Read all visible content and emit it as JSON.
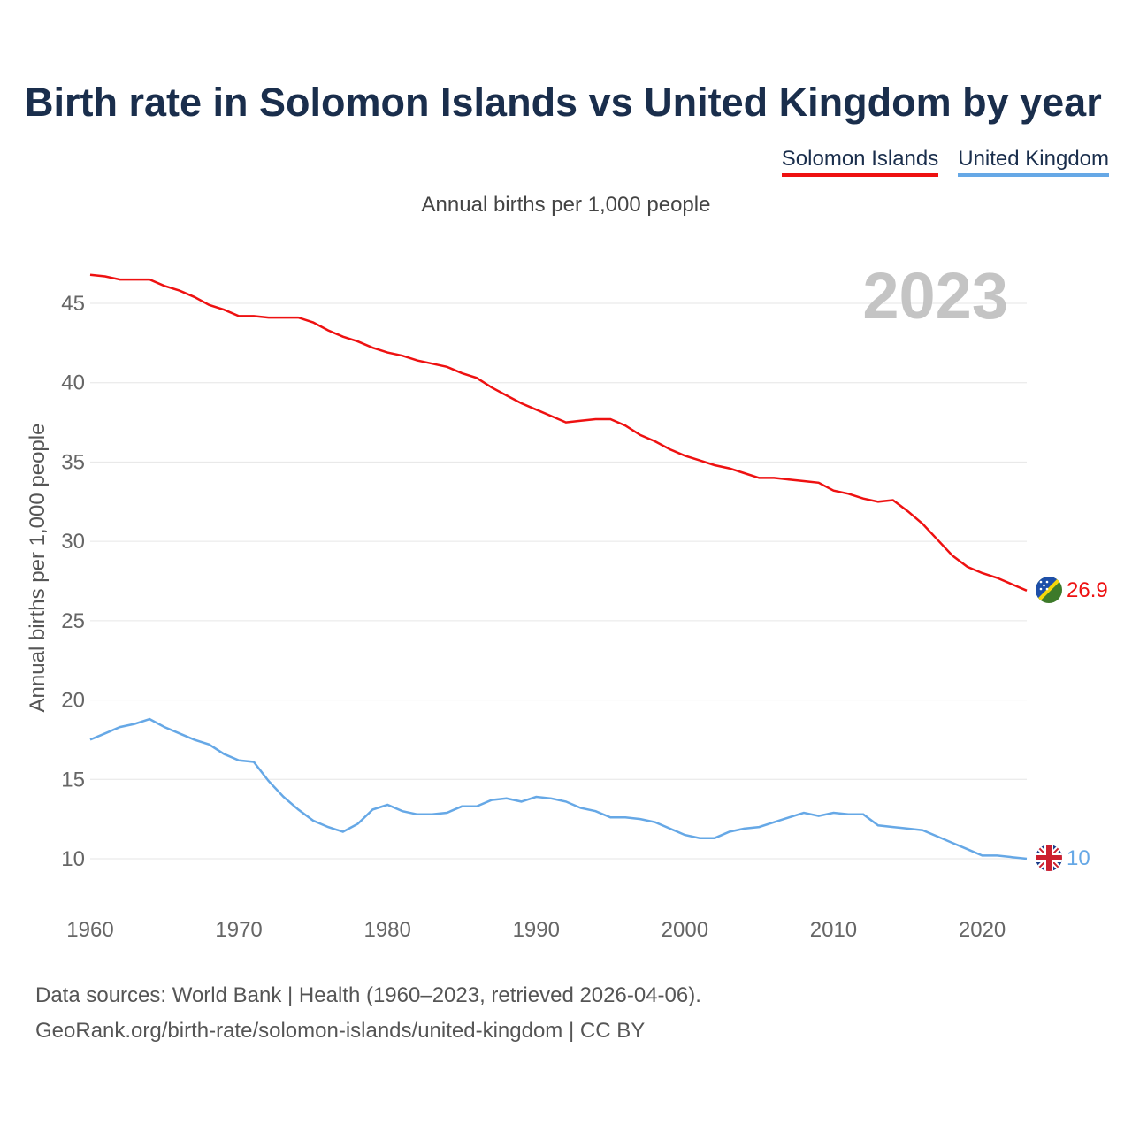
{
  "colors": {
    "solomon": "#ee1111",
    "uk": "#66a8e6",
    "title": "#1a2e4c",
    "grid": "#e6e6e6",
    "tick": "#666666",
    "year": "#c4c4c4"
  },
  "chart_data": {
    "type": "line",
    "title": "Birth rate in Solomon Islands vs United Kingdom by year",
    "subtitle": "Annual births per 1,000 people",
    "ylabel": "Annual births per 1,000 people",
    "xlabel": "",
    "year_label": "2023",
    "xlim": [
      1960,
      2023
    ],
    "ylim": [
      10,
      45
    ],
    "x_ticks": [
      "1960",
      "1970",
      "1980",
      "1990",
      "2000",
      "2010",
      "2020"
    ],
    "y_ticks": [
      "10",
      "15",
      "20",
      "25",
      "30",
      "35",
      "40",
      "45"
    ],
    "x": [
      1960,
      1961,
      1962,
      1963,
      1964,
      1965,
      1966,
      1967,
      1968,
      1969,
      1970,
      1971,
      1972,
      1973,
      1974,
      1975,
      1976,
      1977,
      1978,
      1979,
      1980,
      1981,
      1982,
      1983,
      1984,
      1985,
      1986,
      1987,
      1988,
      1989,
      1990,
      1991,
      1992,
      1993,
      1994,
      1995,
      1996,
      1997,
      1998,
      1999,
      2000,
      2001,
      2002,
      2003,
      2004,
      2005,
      2006,
      2007,
      2008,
      2009,
      2010,
      2011,
      2012,
      2013,
      2014,
      2015,
      2016,
      2017,
      2018,
      2019,
      2020,
      2021,
      2022,
      2023
    ],
    "series": [
      {
        "name": "Solomon Islands",
        "end_label": "26.9",
        "values": [
          46.8,
          46.7,
          46.5,
          46.5,
          46.5,
          46.1,
          45.8,
          45.4,
          44.9,
          44.6,
          44.2,
          44.2,
          44.1,
          44.1,
          44.1,
          43.8,
          43.3,
          42.9,
          42.6,
          42.2,
          41.9,
          41.7,
          41.4,
          41.2,
          41.0,
          40.6,
          40.3,
          39.7,
          39.2,
          38.7,
          38.3,
          37.9,
          37.5,
          37.6,
          37.7,
          37.7,
          37.3,
          36.7,
          36.3,
          35.8,
          35.4,
          35.1,
          34.8,
          34.6,
          34.3,
          34.0,
          34.0,
          33.9,
          33.8,
          33.7,
          33.2,
          33.0,
          32.7,
          32.5,
          32.6,
          31.9,
          31.1,
          30.1,
          29.1,
          28.4,
          28.0,
          27.7,
          27.3,
          26.9
        ]
      },
      {
        "name": "United Kingdom",
        "end_label": "10",
        "values": [
          17.5,
          17.9,
          18.3,
          18.5,
          18.8,
          18.3,
          17.9,
          17.5,
          17.2,
          16.6,
          16.2,
          16.1,
          14.9,
          13.9,
          13.1,
          12.4,
          12.0,
          11.7,
          12.2,
          13.1,
          13.4,
          13.0,
          12.8,
          12.8,
          12.9,
          13.3,
          13.3,
          13.7,
          13.8,
          13.6,
          13.9,
          13.8,
          13.6,
          13.2,
          13.0,
          12.6,
          12.6,
          12.5,
          12.3,
          11.9,
          11.5,
          11.3,
          11.3,
          11.7,
          11.9,
          12.0,
          12.3,
          12.6,
          12.9,
          12.7,
          12.9,
          12.8,
          12.8,
          12.1,
          12.0,
          11.9,
          11.8,
          11.4,
          11.0,
          10.6,
          10.2,
          10.2,
          10.1,
          10.0
        ]
      }
    ]
  },
  "footer": {
    "line1": "Data sources: World Bank | Health (1960–2023, retrieved 2026-04-06).",
    "line2": "GeoRank.org/birth-rate/solomon-islands/united-kingdom | CC BY"
  }
}
